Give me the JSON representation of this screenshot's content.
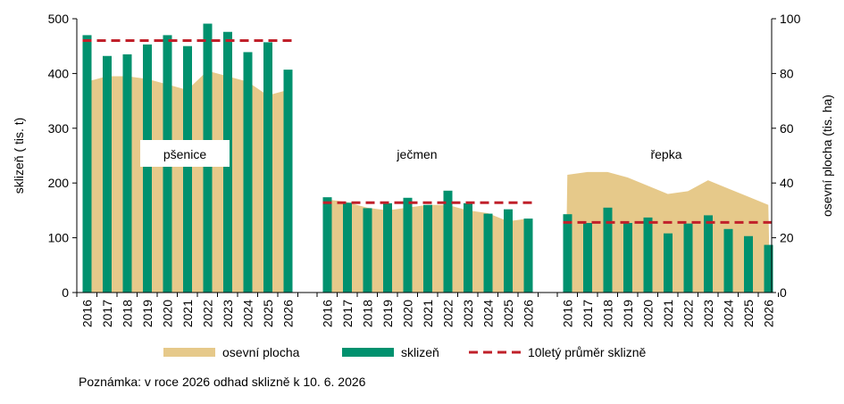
{
  "chart_data": {
    "type": "bar",
    "groups": [
      {
        "label": "pšenice",
        "label_boxed": true,
        "years": [
          "2016",
          "2017",
          "2018",
          "2019",
          "2020",
          "2021",
          "2022",
          "2023",
          "2024",
          "2025",
          "2026"
        ],
        "sklizen": [
          470,
          432,
          435,
          453,
          470,
          450,
          491,
          476,
          439,
          457,
          407
        ],
        "osevni_plocha": [
          77,
          79,
          79,
          78,
          76,
          74,
          81,
          79,
          77,
          72,
          74
        ],
        "prumer_10let": 460
      },
      {
        "label": "ječmen",
        "label_boxed": false,
        "years": [
          "2016",
          "2017",
          "2018",
          "2019",
          "2020",
          "2021",
          "2022",
          "2023",
          "2024",
          "2025",
          "2026"
        ],
        "sklizen": [
          174,
          164,
          154,
          163,
          173,
          160,
          186,
          163,
          144,
          152,
          135
        ],
        "osevni_plocha": [
          34,
          33,
          31,
          30,
          31,
          32,
          32,
          30,
          29,
          26,
          27
        ],
        "prumer_10let": 164
      },
      {
        "label": "řepka",
        "label_boxed": false,
        "years": [
          "2016",
          "2017",
          "2018",
          "2019",
          "2020",
          "2021",
          "2022",
          "2023",
          "2024",
          "2025",
          "2026"
        ],
        "sklizen": [
          143,
          127,
          155,
          127,
          137,
          108,
          126,
          141,
          116,
          103,
          87
        ],
        "osevni_plocha": [
          43,
          44,
          44,
          42,
          39,
          36,
          37,
          41,
          38,
          35,
          32
        ],
        "prumer_10let": 128
      }
    ],
    "ylabel_left": "sklizeň ( tis. t)",
    "ylabel_right": "osevní plocha (tis. ha)",
    "ylim_left": [
      0,
      500
    ],
    "yticks_left": [
      0,
      100,
      200,
      300,
      400,
      500
    ],
    "ylim_right": [
      0,
      100
    ],
    "yticks_right": [
      0,
      20,
      40,
      60,
      80,
      100
    ],
    "grid": false,
    "legend_position": "bottom",
    "legend": [
      {
        "key": "osevni_plocha",
        "label": "osevní plocha",
        "type": "area"
      },
      {
        "key": "sklizen",
        "label": "sklizeň",
        "type": "bar"
      },
      {
        "key": "prumer_10let",
        "label": "10letý průměr sklizně",
        "type": "dashed-line"
      }
    ],
    "colors": {
      "sklizen": "#00916e",
      "osevni_plocha": "#e6c98a",
      "prumer_10let": "#c0202a"
    }
  },
  "note": "Poznámka: v roce 2026 odhad sklizně k 10. 6. 2026"
}
